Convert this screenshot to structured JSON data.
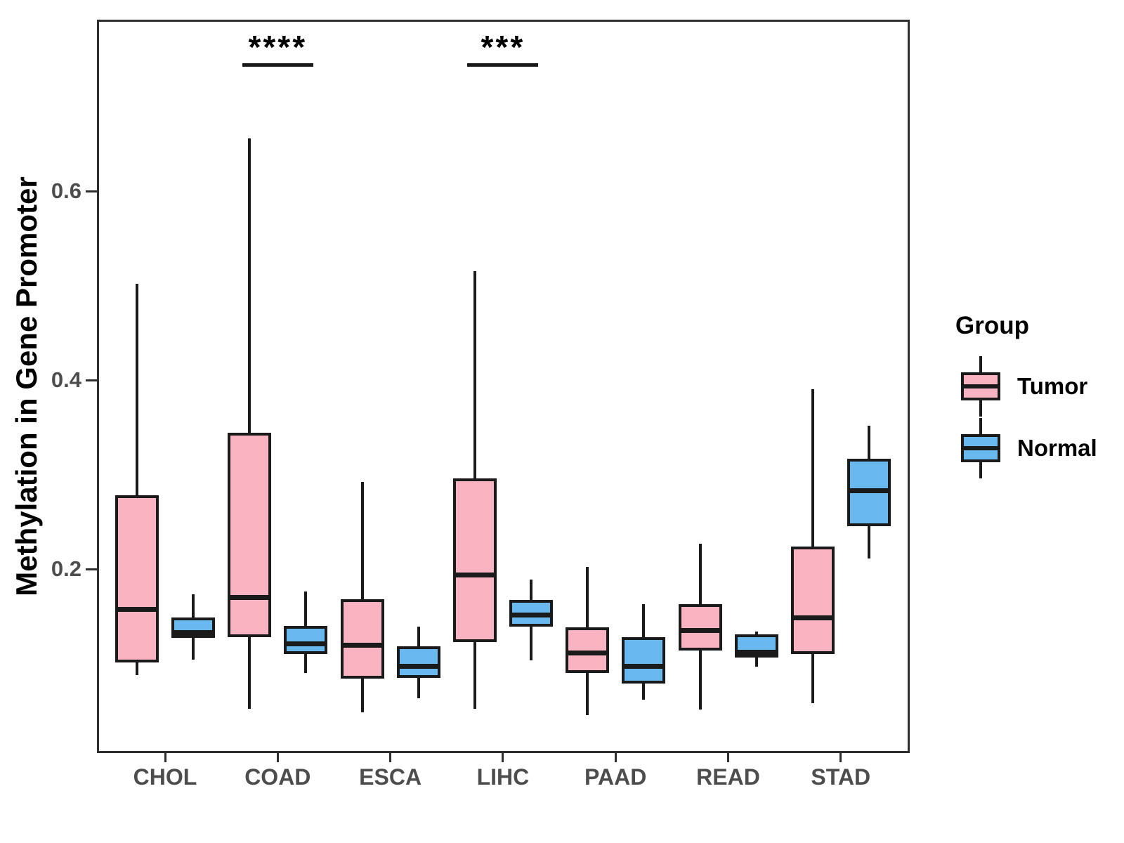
{
  "figure": {
    "background": "#ffffff"
  },
  "chart_data": {
    "type": "boxplot",
    "title": "",
    "xlabel": "",
    "ylabel": "Methylation in Gene Promoter",
    "categories": [
      "CHOL",
      "COAD",
      "ESCA",
      "LIHC",
      "PAAD",
      "READ",
      "STAD"
    ],
    "y_ticks": [
      {
        "value": 0.2,
        "label": "0.2"
      },
      {
        "value": 0.4,
        "label": "0.4"
      },
      {
        "value": 0.6,
        "label": "0.6"
      }
    ],
    "ylim": [
      0.0,
      0.78
    ],
    "grid": "off",
    "legend": {
      "title": "Group",
      "position": "right",
      "items": [
        {
          "label": "Tumor",
          "color": "#F9B3C1"
        },
        {
          "label": "Normal",
          "color": "#6AB8F0"
        }
      ]
    },
    "series": [
      {
        "name": "Tumor",
        "color": "#F9B3C1",
        "boxes": [
          {
            "category": "CHOL",
            "whisker_low": 0.088,
            "q1": 0.101,
            "median": 0.157,
            "q3": 0.278,
            "whisker_high": 0.502
          },
          {
            "category": "COAD",
            "whisker_low": 0.052,
            "q1": 0.128,
            "median": 0.17,
            "q3": 0.344,
            "whisker_high": 0.656
          },
          {
            "category": "ESCA",
            "whisker_low": 0.048,
            "q1": 0.084,
            "median": 0.119,
            "q3": 0.168,
            "whisker_high": 0.292
          },
          {
            "category": "LIHC",
            "whisker_low": 0.052,
            "q1": 0.123,
            "median": 0.194,
            "q3": 0.296,
            "whisker_high": 0.515
          },
          {
            "category": "PAAD",
            "whisker_low": 0.045,
            "q1": 0.09,
            "median": 0.111,
            "q3": 0.138,
            "whisker_high": 0.202
          },
          {
            "category": "READ",
            "whisker_low": 0.051,
            "q1": 0.114,
            "median": 0.135,
            "q3": 0.163,
            "whisker_high": 0.227
          },
          {
            "category": "STAD",
            "whisker_low": 0.058,
            "q1": 0.11,
            "median": 0.148,
            "q3": 0.224,
            "whisker_high": 0.39
          }
        ]
      },
      {
        "name": "Normal",
        "color": "#6AB8F0",
        "boxes": [
          {
            "category": "CHOL",
            "whisker_low": 0.104,
            "q1": 0.127,
            "median": 0.133,
            "q3": 0.149,
            "whisker_high": 0.173
          },
          {
            "category": "COAD",
            "whisker_low": 0.09,
            "q1": 0.11,
            "median": 0.121,
            "q3": 0.14,
            "whisker_high": 0.176
          },
          {
            "category": "ESCA",
            "whisker_low": 0.063,
            "q1": 0.085,
            "median": 0.097,
            "q3": 0.118,
            "whisker_high": 0.139
          },
          {
            "category": "LIHC",
            "whisker_low": 0.103,
            "q1": 0.139,
            "median": 0.151,
            "q3": 0.167,
            "whisker_high": 0.189
          },
          {
            "category": "PAAD",
            "whisker_low": 0.062,
            "q1": 0.079,
            "median": 0.097,
            "q3": 0.128,
            "whisker_high": 0.163
          },
          {
            "category": "READ",
            "whisker_low": 0.097,
            "q1": 0.106,
            "median": 0.112,
            "q3": 0.131,
            "whisker_high": 0.134
          },
          {
            "category": "STAD",
            "whisker_low": 0.211,
            "q1": 0.245,
            "median": 0.283,
            "q3": 0.317,
            "whisker_high": 0.352
          }
        ]
      }
    ],
    "significance": [
      {
        "category": "COAD",
        "label": "****"
      },
      {
        "category": "LIHC",
        "label": "***"
      }
    ]
  },
  "colors": {
    "box_outline": "#1a1a1a",
    "panel_border": "#2e2e2e",
    "axis_text": "#4d4d4d",
    "axis_title": "#000000",
    "significance": "#000000"
  }
}
